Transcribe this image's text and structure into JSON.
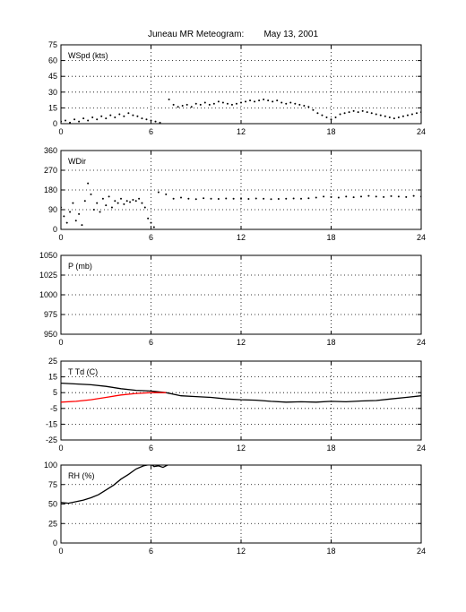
{
  "page": {
    "title": "Juneau MR Meteogram:        May 13, 2001"
  },
  "chart_data": [
    {
      "id": "wspd",
      "type": "scatter",
      "label": "WSpd (kts)",
      "xlim": [
        0,
        24
      ],
      "ylim": [
        0,
        75
      ],
      "xticks": [
        0,
        6,
        12,
        18,
        24
      ],
      "yticks": [
        0,
        15,
        30,
        45,
        60,
        75
      ],
      "grid": true,
      "series": [
        {
          "color": "#000000",
          "marker": "dot",
          "points": [
            [
              0.0,
              2
            ],
            [
              0.3,
              3
            ],
            [
              0.6,
              1
            ],
            [
              0.9,
              4
            ],
            [
              1.2,
              2
            ],
            [
              1.5,
              5
            ],
            [
              1.8,
              3
            ],
            [
              2.1,
              6
            ],
            [
              2.4,
              4
            ],
            [
              2.7,
              7
            ],
            [
              3.0,
              5
            ],
            [
              3.3,
              8
            ],
            [
              3.6,
              6
            ],
            [
              3.9,
              9
            ],
            [
              4.2,
              7
            ],
            [
              4.5,
              10
            ],
            [
              4.8,
              8
            ],
            [
              5.1,
              7
            ],
            [
              5.4,
              5
            ],
            [
              5.7,
              4
            ],
            [
              6.0,
              3
            ],
            [
              6.3,
              2
            ],
            [
              6.6,
              1
            ],
            [
              7.2,
              23
            ],
            [
              7.5,
              18
            ],
            [
              7.8,
              16
            ],
            [
              8.1,
              17
            ],
            [
              8.4,
              18
            ],
            [
              8.7,
              16
            ],
            [
              9.0,
              19
            ],
            [
              9.3,
              18
            ],
            [
              9.6,
              20
            ],
            [
              9.9,
              18
            ],
            [
              10.2,
              19
            ],
            [
              10.5,
              21
            ],
            [
              10.8,
              20
            ],
            [
              11.1,
              19
            ],
            [
              11.4,
              18
            ],
            [
              11.7,
              19
            ],
            [
              12.0,
              20
            ],
            [
              12.3,
              21
            ],
            [
              12.6,
              22
            ],
            [
              12.9,
              21
            ],
            [
              13.2,
              22
            ],
            [
              13.5,
              23
            ],
            [
              13.8,
              22
            ],
            [
              14.1,
              21
            ],
            [
              14.4,
              22
            ],
            [
              14.7,
              20
            ],
            [
              15.0,
              19
            ],
            [
              15.3,
              20
            ],
            [
              15.6,
              19
            ],
            [
              15.9,
              18
            ],
            [
              16.2,
              17
            ],
            [
              16.5,
              16
            ],
            [
              16.8,
              13
            ],
            [
              17.1,
              10
            ],
            [
              17.4,
              8
            ],
            [
              17.7,
              6
            ],
            [
              18.0,
              4
            ],
            [
              18.3,
              6
            ],
            [
              18.6,
              9
            ],
            [
              18.9,
              10
            ],
            [
              19.2,
              11
            ],
            [
              19.5,
              12
            ],
            [
              19.8,
              11
            ],
            [
              20.1,
              12
            ],
            [
              20.4,
              11
            ],
            [
              20.7,
              10
            ],
            [
              21.0,
              9
            ],
            [
              21.3,
              8
            ],
            [
              21.6,
              7
            ],
            [
              21.9,
              6
            ],
            [
              22.2,
              5
            ],
            [
              22.5,
              6
            ],
            [
              22.8,
              7
            ],
            [
              23.1,
              8
            ],
            [
              23.4,
              9
            ],
            [
              23.7,
              10
            ],
            [
              24.0,
              11
            ]
          ]
        }
      ]
    },
    {
      "id": "wdir",
      "type": "scatter",
      "label": "WDir",
      "xlim": [
        0,
        24
      ],
      "ylim": [
        0,
        360
      ],
      "xticks": [
        0,
        6,
        12,
        18,
        24
      ],
      "yticks": [
        0,
        90,
        180,
        270,
        360
      ],
      "grid": true,
      "series": [
        {
          "color": "#000000",
          "marker": "dot",
          "points": [
            [
              0.0,
              100
            ],
            [
              0.2,
              60
            ],
            [
              0.4,
              30
            ],
            [
              0.6,
              80
            ],
            [
              0.8,
              120
            ],
            [
              1.0,
              40
            ],
            [
              1.2,
              70
            ],
            [
              1.4,
              20
            ],
            [
              1.6,
              130
            ],
            [
              1.8,
              210
            ],
            [
              2.0,
              160
            ],
            [
              2.2,
              90
            ],
            [
              2.4,
              120
            ],
            [
              2.6,
              80
            ],
            [
              2.8,
              140
            ],
            [
              3.0,
              110
            ],
            [
              3.2,
              150
            ],
            [
              3.4,
              100
            ],
            [
              3.6,
              130
            ],
            [
              3.8,
              120
            ],
            [
              4.0,
              140
            ],
            [
              4.2,
              115
            ],
            [
              4.4,
              130
            ],
            [
              4.6,
              125
            ],
            [
              4.8,
              135
            ],
            [
              5.0,
              130
            ],
            [
              5.2,
              140
            ],
            [
              5.4,
              120
            ],
            [
              5.6,
              100
            ],
            [
              5.8,
              50
            ],
            [
              6.0,
              30
            ],
            [
              6.2,
              10
            ],
            [
              6.5,
              170
            ],
            [
              7.0,
              160
            ],
            [
              7.5,
              140
            ],
            [
              8.0,
              145
            ],
            [
              8.5,
              140
            ],
            [
              9.0,
              138
            ],
            [
              9.5,
              142
            ],
            [
              10.0,
              140
            ],
            [
              10.5,
              139
            ],
            [
              11.0,
              141
            ],
            [
              11.5,
              140
            ],
            [
              12.0,
              140
            ],
            [
              12.5,
              139
            ],
            [
              13.0,
              141
            ],
            [
              13.5,
              140
            ],
            [
              14.0,
              138
            ],
            [
              14.5,
              139
            ],
            [
              15.0,
              140
            ],
            [
              15.5,
              141
            ],
            [
              16.0,
              140
            ],
            [
              16.5,
              142
            ],
            [
              17.0,
              145
            ],
            [
              17.5,
              150
            ],
            [
              18.0,
              148
            ],
            [
              18.5,
              145
            ],
            [
              19.0,
              150
            ],
            [
              19.5,
              147
            ],
            [
              20.0,
              150
            ],
            [
              20.5,
              153
            ],
            [
              21.0,
              150
            ],
            [
              21.5,
              148
            ],
            [
              22.0,
              152
            ],
            [
              22.5,
              150
            ],
            [
              23.0,
              148
            ],
            [
              23.5,
              153
            ],
            [
              24.0,
              150
            ]
          ]
        }
      ]
    },
    {
      "id": "p",
      "type": "scatter",
      "label": "P (mb)",
      "xlim": [
        0,
        24
      ],
      "ylim": [
        950,
        1050
      ],
      "xticks": [
        0,
        6,
        12,
        18,
        24
      ],
      "yticks": [
        950,
        975,
        1000,
        1025,
        1050
      ],
      "grid": true,
      "series": []
    },
    {
      "id": "ttd",
      "type": "line",
      "label": "T Td (C)",
      "xlim": [
        0,
        24
      ],
      "ylim": [
        -25,
        25
      ],
      "xticks": [
        0,
        6,
        12,
        18,
        24
      ],
      "yticks": [
        -25,
        -15,
        -5,
        5,
        15,
        25
      ],
      "grid": true,
      "series": [
        {
          "color": "#000000",
          "points": [
            [
              0,
              11
            ],
            [
              1,
              10.5
            ],
            [
              2,
              10
            ],
            [
              3,
              9
            ],
            [
              4,
              7.5
            ],
            [
              5,
              6.5
            ],
            [
              6,
              6
            ],
            [
              7,
              5
            ],
            [
              8,
              3
            ],
            [
              9,
              2.5
            ],
            [
              10,
              2
            ],
            [
              11,
              1
            ],
            [
              12,
              0.5
            ],
            [
              13,
              0.2
            ],
            [
              14,
              -0.5
            ],
            [
              15,
              -1
            ],
            [
              16,
              -0.8
            ],
            [
              17,
              -1
            ],
            [
              18,
              -0.5
            ],
            [
              19,
              -0.8
            ],
            [
              20,
              -0.3
            ],
            [
              21,
              0
            ],
            [
              22,
              1
            ],
            [
              23,
              2
            ],
            [
              24,
              3
            ]
          ]
        },
        {
          "color": "#ff0000",
          "points": [
            [
              0,
              -1
            ],
            [
              1,
              -0.5
            ],
            [
              2,
              0.5
            ],
            [
              3,
              2
            ],
            [
              4,
              3.5
            ],
            [
              5,
              4.5
            ],
            [
              6,
              5
            ],
            [
              7,
              5
            ]
          ]
        }
      ]
    },
    {
      "id": "rh",
      "type": "line",
      "label": "RH (%)",
      "xlim": [
        0,
        24
      ],
      "ylim": [
        0,
        100
      ],
      "xticks": [
        0,
        6,
        12,
        18,
        24
      ],
      "yticks": [
        0,
        25,
        50,
        75,
        100
      ],
      "grid": true,
      "series": [
        {
          "color": "#000000",
          "points": [
            [
              0,
              52
            ],
            [
              0.5,
              51
            ],
            [
              1,
              53
            ],
            [
              1.5,
              55
            ],
            [
              2,
              58
            ],
            [
              2.5,
              62
            ],
            [
              3,
              68
            ],
            [
              3.5,
              74
            ],
            [
              4,
              82
            ],
            [
              4.5,
              88
            ],
            [
              5,
              95
            ],
            [
              5.5,
              99
            ],
            [
              6,
              101
            ],
            [
              6.2,
              98
            ],
            [
              6.5,
              99
            ],
            [
              6.8,
              97
            ],
            [
              7.1,
              100
            ],
            [
              7.3,
              101
            ]
          ]
        }
      ]
    }
  ]
}
